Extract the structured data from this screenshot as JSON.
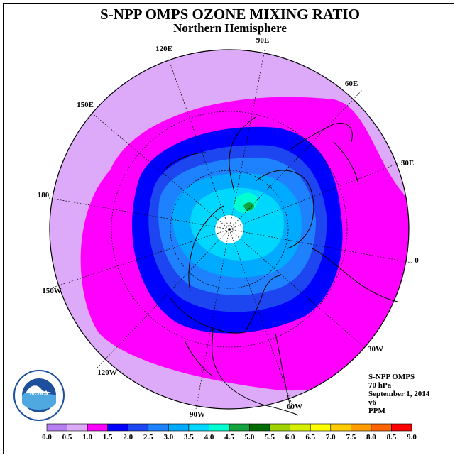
{
  "header": {
    "title": "S-NPP OMPS OZONE MIXING RATIO",
    "subtitle": "Northern Hemisphere"
  },
  "map": {
    "projection": "north-polar-stereographic",
    "longitude_labels": [
      "90E",
      "60E",
      "30E",
      "0",
      "30W",
      "60W",
      "90W",
      "120W",
      "150W",
      "180",
      "150E",
      "120E"
    ],
    "field": "ozone mixing ratio",
    "no_data_region": "pole"
  },
  "info_block": {
    "lines": [
      "S-NPP OMPS",
      "70 hPa",
      "September 1, 2014",
      "v6",
      "PPM"
    ]
  },
  "logo": {
    "name": "NOAA",
    "text": "NOAA"
  },
  "colorbar": {
    "tick_labels": [
      "0.0",
      "0.5",
      "1.0",
      "1.5",
      "2.0",
      "2.5",
      "3.0",
      "3.5",
      "4.0",
      "4.5",
      "5.0",
      "5.5",
      "6.0",
      "6.5",
      "7.0",
      "7.5",
      "8.0",
      "8.5",
      "9.0"
    ],
    "colors": [
      "#b77ef0",
      "#dcaaf8",
      "#ff00ff",
      "#0000ff",
      "#1e46f0",
      "#1e82ff",
      "#00aaff",
      "#00d7ff",
      "#00ffd0",
      "#13a43f",
      "#006c00",
      "#a0d200",
      "#d6ef00",
      "#ffff00",
      "#ffcc00",
      "#ff9d00",
      "#ff6400",
      "#ff0000",
      "#8c5a3c"
    ]
  }
}
